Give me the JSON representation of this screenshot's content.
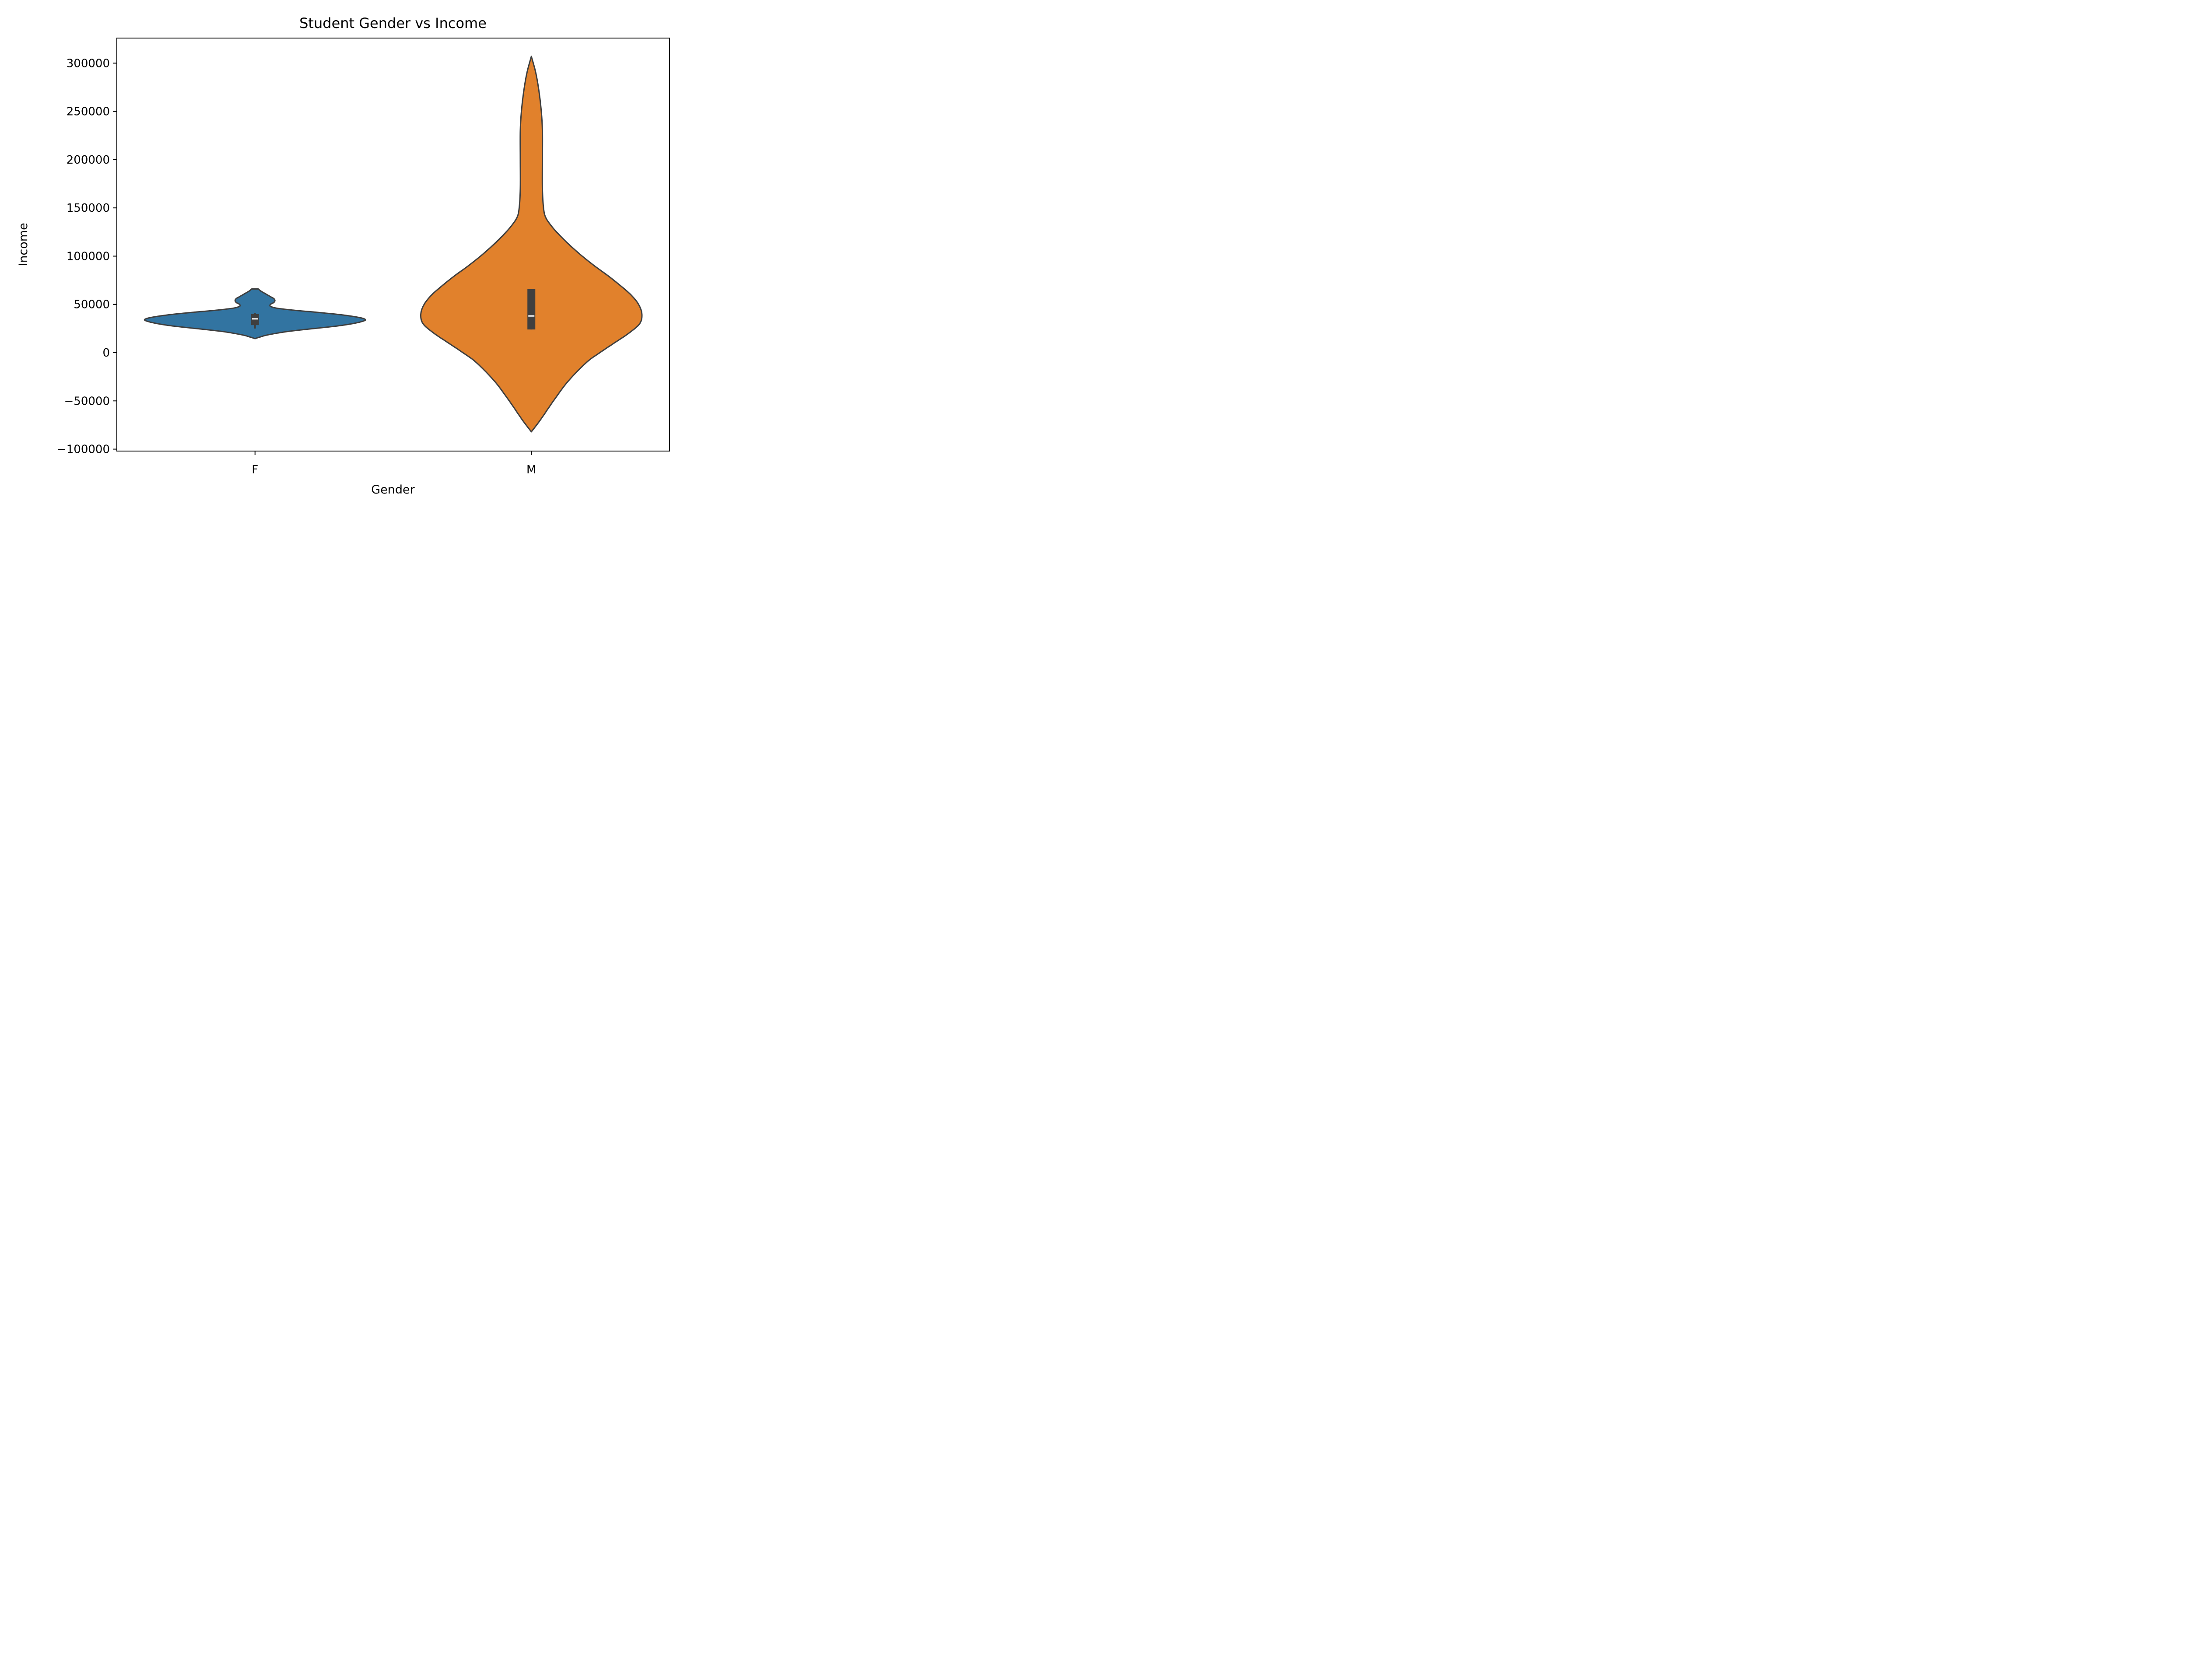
{
  "chart_data": {
    "type": "violin",
    "title": "Student Gender vs Income",
    "xlabel": "Gender",
    "ylabel": "Income",
    "categories": [
      "F",
      "M"
    ],
    "ylim": [
      -102000,
      326000
    ],
    "yticks": [
      -100000,
      -50000,
      0,
      50000,
      100000,
      150000,
      200000,
      250000,
      300000
    ],
    "ytick_labels": [
      "−100000",
      "−50000",
      "0",
      "50000",
      "100000",
      "150000",
      "200000",
      "250000",
      "300000"
    ],
    "grid": false,
    "violins": [
      {
        "category": "F",
        "color": "#3274a1",
        "min": 14500,
        "max": 66000,
        "median": 35000,
        "q1": 28500,
        "q3": 40000,
        "whisker_low": 25000,
        "whisker_high": 41000,
        "profile": [
          [
            14500,
            0.0
          ],
          [
            16000,
            0.04
          ],
          [
            18000,
            0.1
          ],
          [
            20000,
            0.19
          ],
          [
            22000,
            0.3
          ],
          [
            24000,
            0.45
          ],
          [
            26000,
            0.62
          ],
          [
            28000,
            0.77
          ],
          [
            30000,
            0.88
          ],
          [
            32000,
            0.96
          ],
          [
            34000,
            1.0
          ],
          [
            36000,
            0.96
          ],
          [
            38000,
            0.86
          ],
          [
            40000,
            0.72
          ],
          [
            42000,
            0.54
          ],
          [
            44000,
            0.35
          ],
          [
            46000,
            0.2
          ],
          [
            48000,
            0.14
          ],
          [
            50000,
            0.14
          ],
          [
            52000,
            0.17
          ],
          [
            54000,
            0.18
          ],
          [
            56000,
            0.17
          ],
          [
            58000,
            0.14
          ],
          [
            60000,
            0.11
          ],
          [
            62000,
            0.08
          ],
          [
            64000,
            0.05
          ],
          [
            66000,
            0.03
          ]
        ]
      },
      {
        "category": "M",
        "color": "#e1812c",
        "min": -82000,
        "max": 307000,
        "median": 38000,
        "q1": 24000,
        "q3": 66000,
        "whisker_low": 24000,
        "whisker_high": 66000,
        "profile": [
          [
            -82000,
            0.0
          ],
          [
            -70000,
            0.08
          ],
          [
            -50000,
            0.2
          ],
          [
            -30000,
            0.33
          ],
          [
            -10000,
            0.5
          ],
          [
            0,
            0.62
          ],
          [
            10000,
            0.75
          ],
          [
            20000,
            0.88
          ],
          [
            30000,
            0.98
          ],
          [
            40000,
            1.0
          ],
          [
            50000,
            0.97
          ],
          [
            60000,
            0.9
          ],
          [
            70000,
            0.8
          ],
          [
            80000,
            0.69
          ],
          [
            90000,
            0.57
          ],
          [
            100000,
            0.46
          ],
          [
            110000,
            0.36
          ],
          [
            120000,
            0.27
          ],
          [
            130000,
            0.19
          ],
          [
            140000,
            0.13
          ],
          [
            150000,
            0.11
          ],
          [
            170000,
            0.1
          ],
          [
            200000,
            0.1
          ],
          [
            230000,
            0.1
          ],
          [
            250000,
            0.09
          ],
          [
            270000,
            0.07
          ],
          [
            290000,
            0.04
          ],
          [
            307000,
            0.0
          ]
        ]
      }
    ]
  }
}
